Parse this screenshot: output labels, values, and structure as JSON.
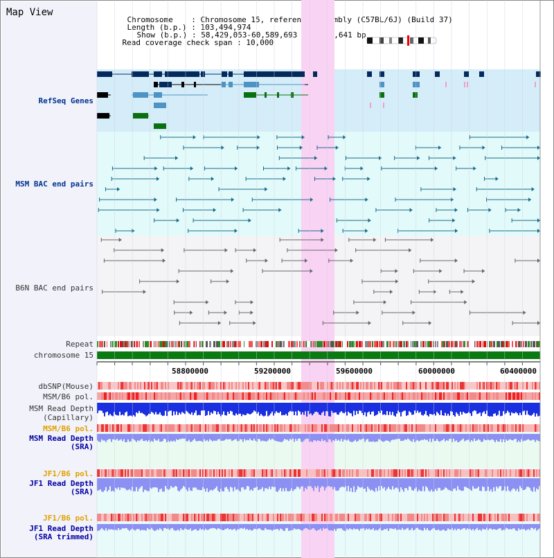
{
  "app": {
    "title": "Map View"
  },
  "info": {
    "chromosome_key": "Chromosome",
    "chromosome_value": "Chromosome 15, reference assembly (C57BL/6J) (Build 37)",
    "length_key": "Length (b.p.)",
    "length_value": "103,494,974",
    "show_key": "Show (b.p.)",
    "show_value": "58,429,053-60,589,693 : 2,160,641 bp",
    "coverage_key": "Read coverage check span",
    "coverage_value": "10,000"
  },
  "tracks": {
    "refseq": "RefSeq Genes",
    "msm_bac": "MSM BAC end pairs",
    "b6n_bac": "B6N BAC end pairs",
    "repeat": "Repeat",
    "chromosome": "chromosome 15",
    "dbsnp": "dbSNP(Mouse)",
    "msm_b6_pol_1": "MSM/B6 pol.",
    "msm_depth_cap_1": "MSM Read Depth",
    "msm_depth_cap_2": "(Capillary)",
    "msm_b6_pol_2": "MSM/B6 pol.",
    "msm_depth_sra_1": "MSM Read Depth",
    "msm_depth_sra_2": "(SRA)",
    "jf1_b6_pol_1": "JF1/B6 pol.",
    "jf1_depth_sra_1": "JF1 Read Depth",
    "jf1_depth_sra_2": "(SRA)",
    "jf1_b6_pol_2": "JF1/B6 pol.",
    "jf1_depth_trim_1": "JF1 Read Depth",
    "jf1_depth_trim_2": "(SRA trimmed)"
  },
  "axis": {
    "ticks": [
      "58800000",
      "59200000",
      "59600000",
      "60000000",
      "60400000"
    ]
  },
  "colors": {
    "highlight": "#f9d3f3",
    "refseq_bg": "#d5edf8",
    "msm_bg": "#e2fafa",
    "b6n_bg": "#f4f4f6",
    "gene_dark": "#042a5c",
    "gene_light": "#4d94c4",
    "gene_green": "#0a6f10",
    "chromosome": "#0b7a13",
    "depth_blue": "#1a2fe0",
    "depth_light": "#8b90f2"
  }
}
